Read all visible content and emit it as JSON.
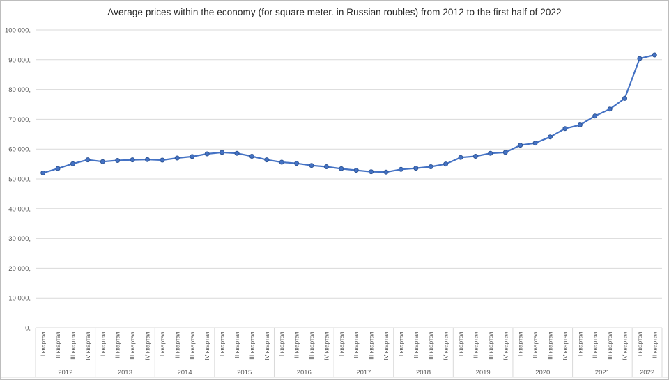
{
  "chart_data": {
    "type": "line",
    "title": "Average prices within the economy (for square meter. in Russian roubles) from 2012 to the first half of 2022",
    "legend": "none",
    "grid": "horizontal",
    "y_axis": {
      "min": 0,
      "max": 100000,
      "tick_interval": 10000,
      "tick_labels": [
        "0,",
        "10 000,",
        "20 000,",
        "30 000,",
        "40 000,",
        "50 000,",
        "60 000,",
        "70 000,",
        "80 000,",
        "90 000,",
        "100 000,"
      ]
    },
    "x_axis": {
      "quarter_labels": [
        "I квартал",
        "II квартал",
        "III квартал",
        "IV квартал"
      ],
      "years": [
        "2012",
        "2013",
        "2014",
        "2015",
        "2016",
        "2017",
        "2018",
        "2019",
        "2020",
        "2021",
        "2022"
      ],
      "quarters_per_year": [
        4,
        4,
        4,
        4,
        4,
        4,
        4,
        4,
        4,
        4,
        2
      ]
    },
    "series": {
      "color": "#4472c4",
      "marker_border": "#2e5596",
      "values": [
        52000,
        53500,
        55100,
        56400,
        55800,
        56200,
        56400,
        56500,
        56300,
        57000,
        57500,
        58400,
        58900,
        58600,
        57600,
        56400,
        55600,
        55200,
        54500,
        54100,
        53400,
        52900,
        52400,
        52300,
        53200,
        53600,
        54100,
        55000,
        57200,
        57600,
        58600,
        58900,
        61300,
        62000,
        64100,
        66900,
        68100,
        71100,
        73400,
        77000,
        90400,
        91600
      ]
    }
  },
  "colors": {
    "background": "#ffffff",
    "border": "#bdbdbd",
    "gridline": "#d9d9d9",
    "axis_text": "#595959",
    "title_text": "#262626",
    "line": "#4472c4"
  }
}
